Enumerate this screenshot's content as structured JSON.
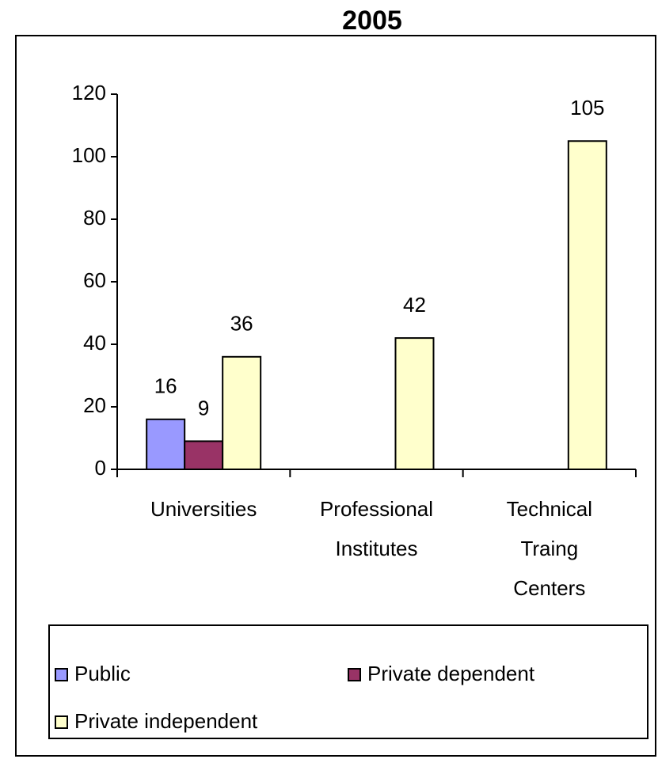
{
  "chart_data": {
    "type": "bar",
    "title": "2005",
    "categories": [
      "Universities",
      "Professional Institutes",
      "Technical Traing Centers"
    ],
    "series": [
      {
        "name": "Public",
        "color": "#9999ff",
        "values": [
          16,
          null,
          null
        ]
      },
      {
        "name": "Private dependent",
        "color": "#993366",
        "values": [
          9,
          null,
          null
        ]
      },
      {
        "name": "Private independent",
        "color": "#ffffcc",
        "values": [
          36,
          42,
          105
        ]
      }
    ],
    "ylim": [
      0,
      120
    ],
    "yticks": [
      0,
      20,
      40,
      60,
      80,
      100,
      120
    ],
    "grid": false,
    "legend": "bottom"
  }
}
